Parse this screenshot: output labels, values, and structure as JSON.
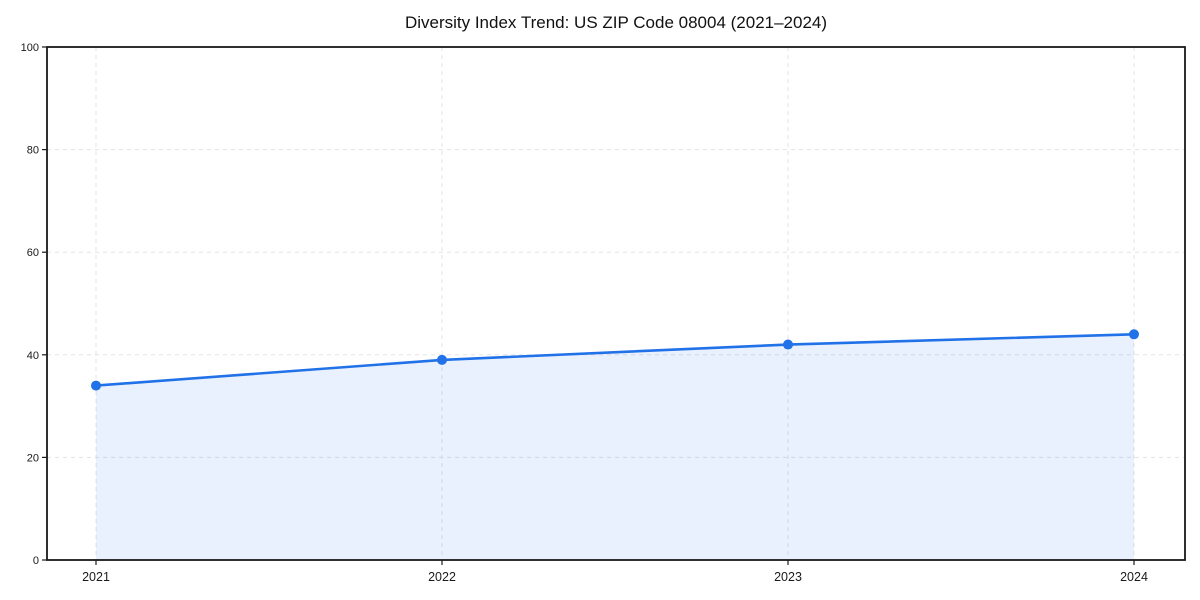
{
  "chart_data": {
    "type": "line",
    "title": "Diversity Index Trend: US ZIP Code 08004 (2021–2024)",
    "series_name": "Diversity Index",
    "categories": [
      "2021",
      "2022",
      "2023",
      "2024"
    ],
    "values": [
      34,
      39,
      42,
      44
    ],
    "xlabel": "",
    "ylabel": "",
    "ylim": [
      0,
      100
    ],
    "yticks": [
      0,
      20,
      40,
      60,
      80,
      100
    ],
    "grid": "dashed",
    "legend_position": "none",
    "line_color": "#2171e8",
    "marker": "circle",
    "marker_color": "#2171e8",
    "fill_color": "rgba(33, 113, 232, 0.10)",
    "gridline_color": "#e3e3e3",
    "spine_color": "#1a1a1a"
  }
}
